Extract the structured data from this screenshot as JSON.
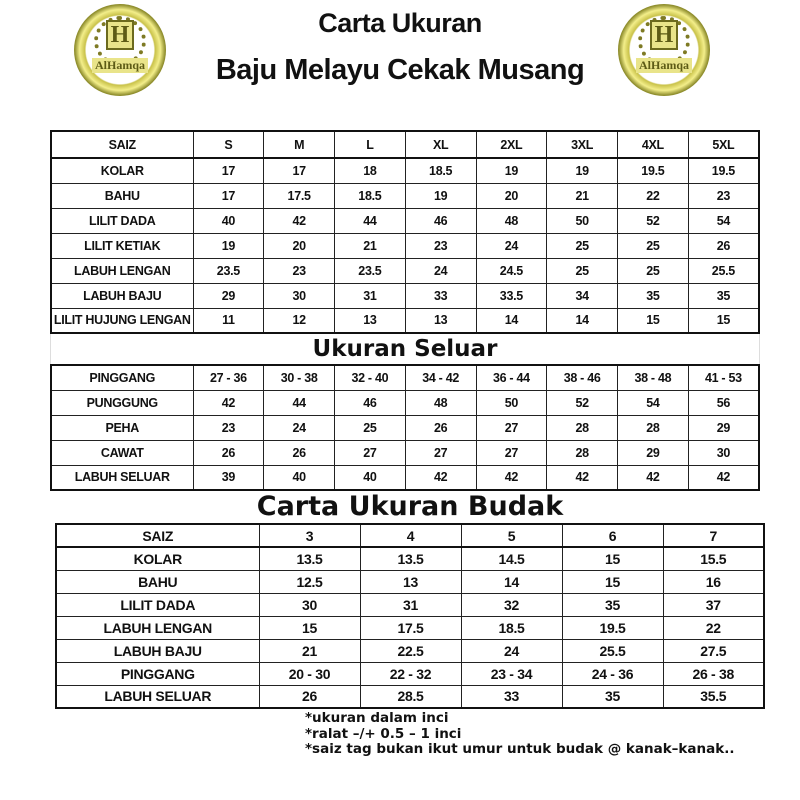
{
  "header": {
    "title_line1": "Carta Ukuran",
    "title_line2": "Baju Melayu Cekak Musang",
    "logo_text": "AlHamqa",
    "logo_letter": "H",
    "logo_color": "#c9c24a"
  },
  "baju": {
    "headers": [
      "SAIZ",
      "S",
      "M",
      "L",
      "XL",
      "2XL",
      "3XL",
      "4XL",
      "5XL"
    ],
    "rows": [
      [
        "KOLAR",
        "17",
        "17",
        "18",
        "18.5",
        "19",
        "19",
        "19.5",
        "19.5"
      ],
      [
        "BAHU",
        "17",
        "17.5",
        "18.5",
        "19",
        "20",
        "21",
        "22",
        "23"
      ],
      [
        "LILIT DADA",
        "40",
        "42",
        "44",
        "46",
        "48",
        "50",
        "52",
        "54"
      ],
      [
        "LILIT KETIAK",
        "19",
        "20",
        "21",
        "23",
        "24",
        "25",
        "25",
        "26"
      ],
      [
        "LABUH LENGAN",
        "23.5",
        "23",
        "23.5",
        "24",
        "24.5",
        "25",
        "25",
        "25.5"
      ],
      [
        "LABUH BAJU",
        "29",
        "30",
        "31",
        "33",
        "33.5",
        "34",
        "35",
        "35"
      ],
      [
        "LILIT HUJUNG LENGAN",
        "11",
        "12",
        "13",
        "13",
        "14",
        "14",
        "15",
        "15"
      ]
    ]
  },
  "seluar": {
    "title": "Ukuran Seluar",
    "rows": [
      [
        "PINGGANG",
        "27 - 36",
        "30 - 38",
        "32 - 40",
        "34 - 42",
        "36 - 44",
        "38 - 46",
        "38 - 48",
        "41 - 53"
      ],
      [
        "PUNGGUNG",
        "42",
        "44",
        "46",
        "48",
        "50",
        "52",
        "54",
        "56"
      ],
      [
        "PEHA",
        "23",
        "24",
        "25",
        "26",
        "27",
        "28",
        "28",
        "29"
      ],
      [
        "CAWAT",
        "26",
        "26",
        "27",
        "27",
        "27",
        "28",
        "29",
        "30"
      ],
      [
        "LABUH SELUAR",
        "39",
        "40",
        "40",
        "42",
        "42",
        "42",
        "42",
        "42"
      ]
    ]
  },
  "budak": {
    "title": "Carta Ukuran Budak",
    "headers": [
      "SAIZ",
      "3",
      "4",
      "5",
      "6",
      "7"
    ],
    "rows": [
      [
        "KOLAR",
        "13.5",
        "13.5",
        "14.5",
        "15",
        "15.5"
      ],
      [
        "BAHU",
        "12.5",
        "13",
        "14",
        "15",
        "16"
      ],
      [
        "LILIT DADA",
        "30",
        "31",
        "32",
        "35",
        "37"
      ],
      [
        "LABUH LENGAN",
        "15",
        "17.5",
        "18.5",
        "19.5",
        "22"
      ],
      [
        "LABUH BAJU",
        "21",
        "22.5",
        "24",
        "25.5",
        "27.5"
      ],
      [
        "PINGGANG",
        "20 - 30",
        "22 - 32",
        "23 - 34",
        "24 - 36",
        "26 - 38"
      ],
      [
        "LABUH SELUAR",
        "26",
        "28.5",
        "33",
        "35",
        "35.5"
      ]
    ]
  },
  "notes": [
    "*ukuran dalam inci",
    "*ralat –/+ 0.5 – 1 inci",
    "*saiz tag bukan ikut umur untuk budak @ kanak–kanak.."
  ]
}
